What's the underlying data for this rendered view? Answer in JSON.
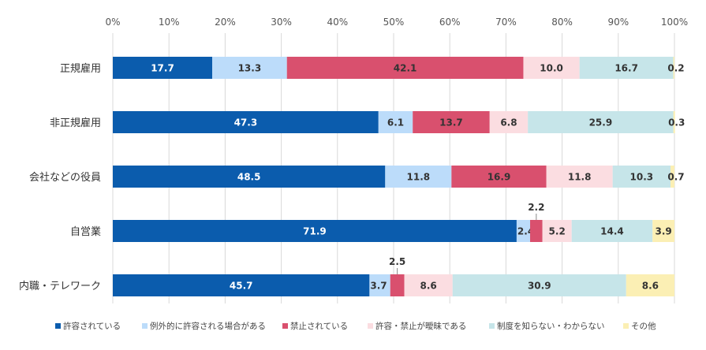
{
  "chart_data": {
    "type": "bar",
    "orientation": "horizontal",
    "stacked": true,
    "title": "",
    "xlabel": "",
    "ylabel": "",
    "xlim": [
      0,
      100
    ],
    "x_ticks": [
      "0%",
      "10%",
      "20%",
      "30%",
      "40%",
      "50%",
      "60%",
      "70%",
      "80%",
      "90%",
      "100%"
    ],
    "grid": true,
    "legend_position": "bottom",
    "categories": [
      "正規雇用",
      "非正規雇用",
      "会社などの役員",
      "自営業",
      "内職・テレワーク"
    ],
    "series": [
      {
        "name": "許容されている",
        "color": "#0b5cad",
        "label_color": "#ffffff",
        "values": [
          17.7,
          47.3,
          48.5,
          71.9,
          45.7
        ],
        "labels": [
          "17.7",
          "47.3",
          "48.5",
          "71.9",
          "45.7"
        ]
      },
      {
        "name": "例外的に許容される場合がある",
        "color": "#bcdcfa",
        "label_color": "#333333",
        "values": [
          13.3,
          6.1,
          11.8,
          2.4,
          3.7
        ],
        "labels": [
          "13.3",
          "6.1",
          "11.8",
          "2.4",
          "3.7"
        ]
      },
      {
        "name": "禁止されている",
        "color": "#d9506e",
        "label_color": "#333333",
        "values": [
          42.1,
          13.7,
          16.9,
          2.2,
          2.5
        ],
        "labels": [
          "42.1",
          "13.7",
          "16.9",
          "2.2",
          "2.5"
        ]
      },
      {
        "name": "許容・禁止が曖昧である",
        "color": "#fbdde1",
        "label_color": "#333333",
        "values": [
          10.0,
          6.8,
          11.8,
          5.2,
          8.6
        ],
        "labels": [
          "10.0",
          "6.8",
          "11.8",
          "5.2",
          "8.6"
        ]
      },
      {
        "name": "制度を知らない・わからない",
        "color": "#c6e5e9",
        "label_color": "#333333",
        "values": [
          16.7,
          25.9,
          10.3,
          14.4,
          30.9
        ],
        "labels": [
          "16.7",
          "25.9",
          "10.3",
          "14.4",
          "30.9"
        ]
      },
      {
        "name": "その他",
        "color": "#fbefb4",
        "label_color": "#333333",
        "values": [
          0.2,
          0.3,
          0.7,
          3.9,
          8.6
        ],
        "labels": [
          "0.2",
          "0.3",
          "0.7",
          "3.9",
          "8.6"
        ]
      }
    ]
  }
}
